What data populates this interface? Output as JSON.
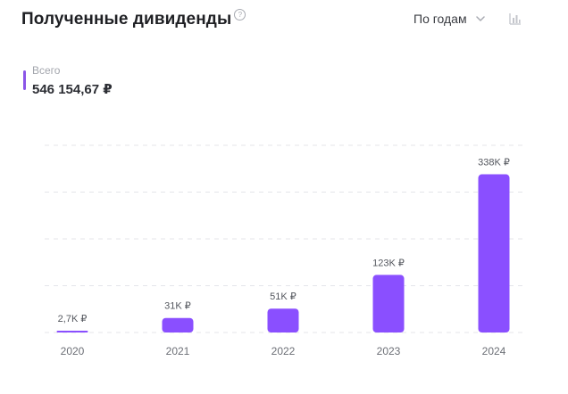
{
  "header": {
    "title": "Полученные дивиденды",
    "help_symbol": "?",
    "period_select_label": "По годам",
    "chart_type_icon": "bar-chart-icon"
  },
  "summary": {
    "total_label": "Всего",
    "total_value": "546 154,67 ₽"
  },
  "colors": {
    "accent": "#8a4fff",
    "marker": "#8b55e8"
  },
  "chart_data": {
    "type": "bar",
    "categories": [
      "2020",
      "2021",
      "2022",
      "2023",
      "2024"
    ],
    "values": [
      2700,
      31000,
      51000,
      123000,
      338000
    ],
    "value_labels": [
      "2,7K ₽",
      "31K ₽",
      "51K ₽",
      "123K ₽",
      "338K ₽"
    ],
    "ylim": [
      0,
      400000
    ],
    "grid": true
  }
}
